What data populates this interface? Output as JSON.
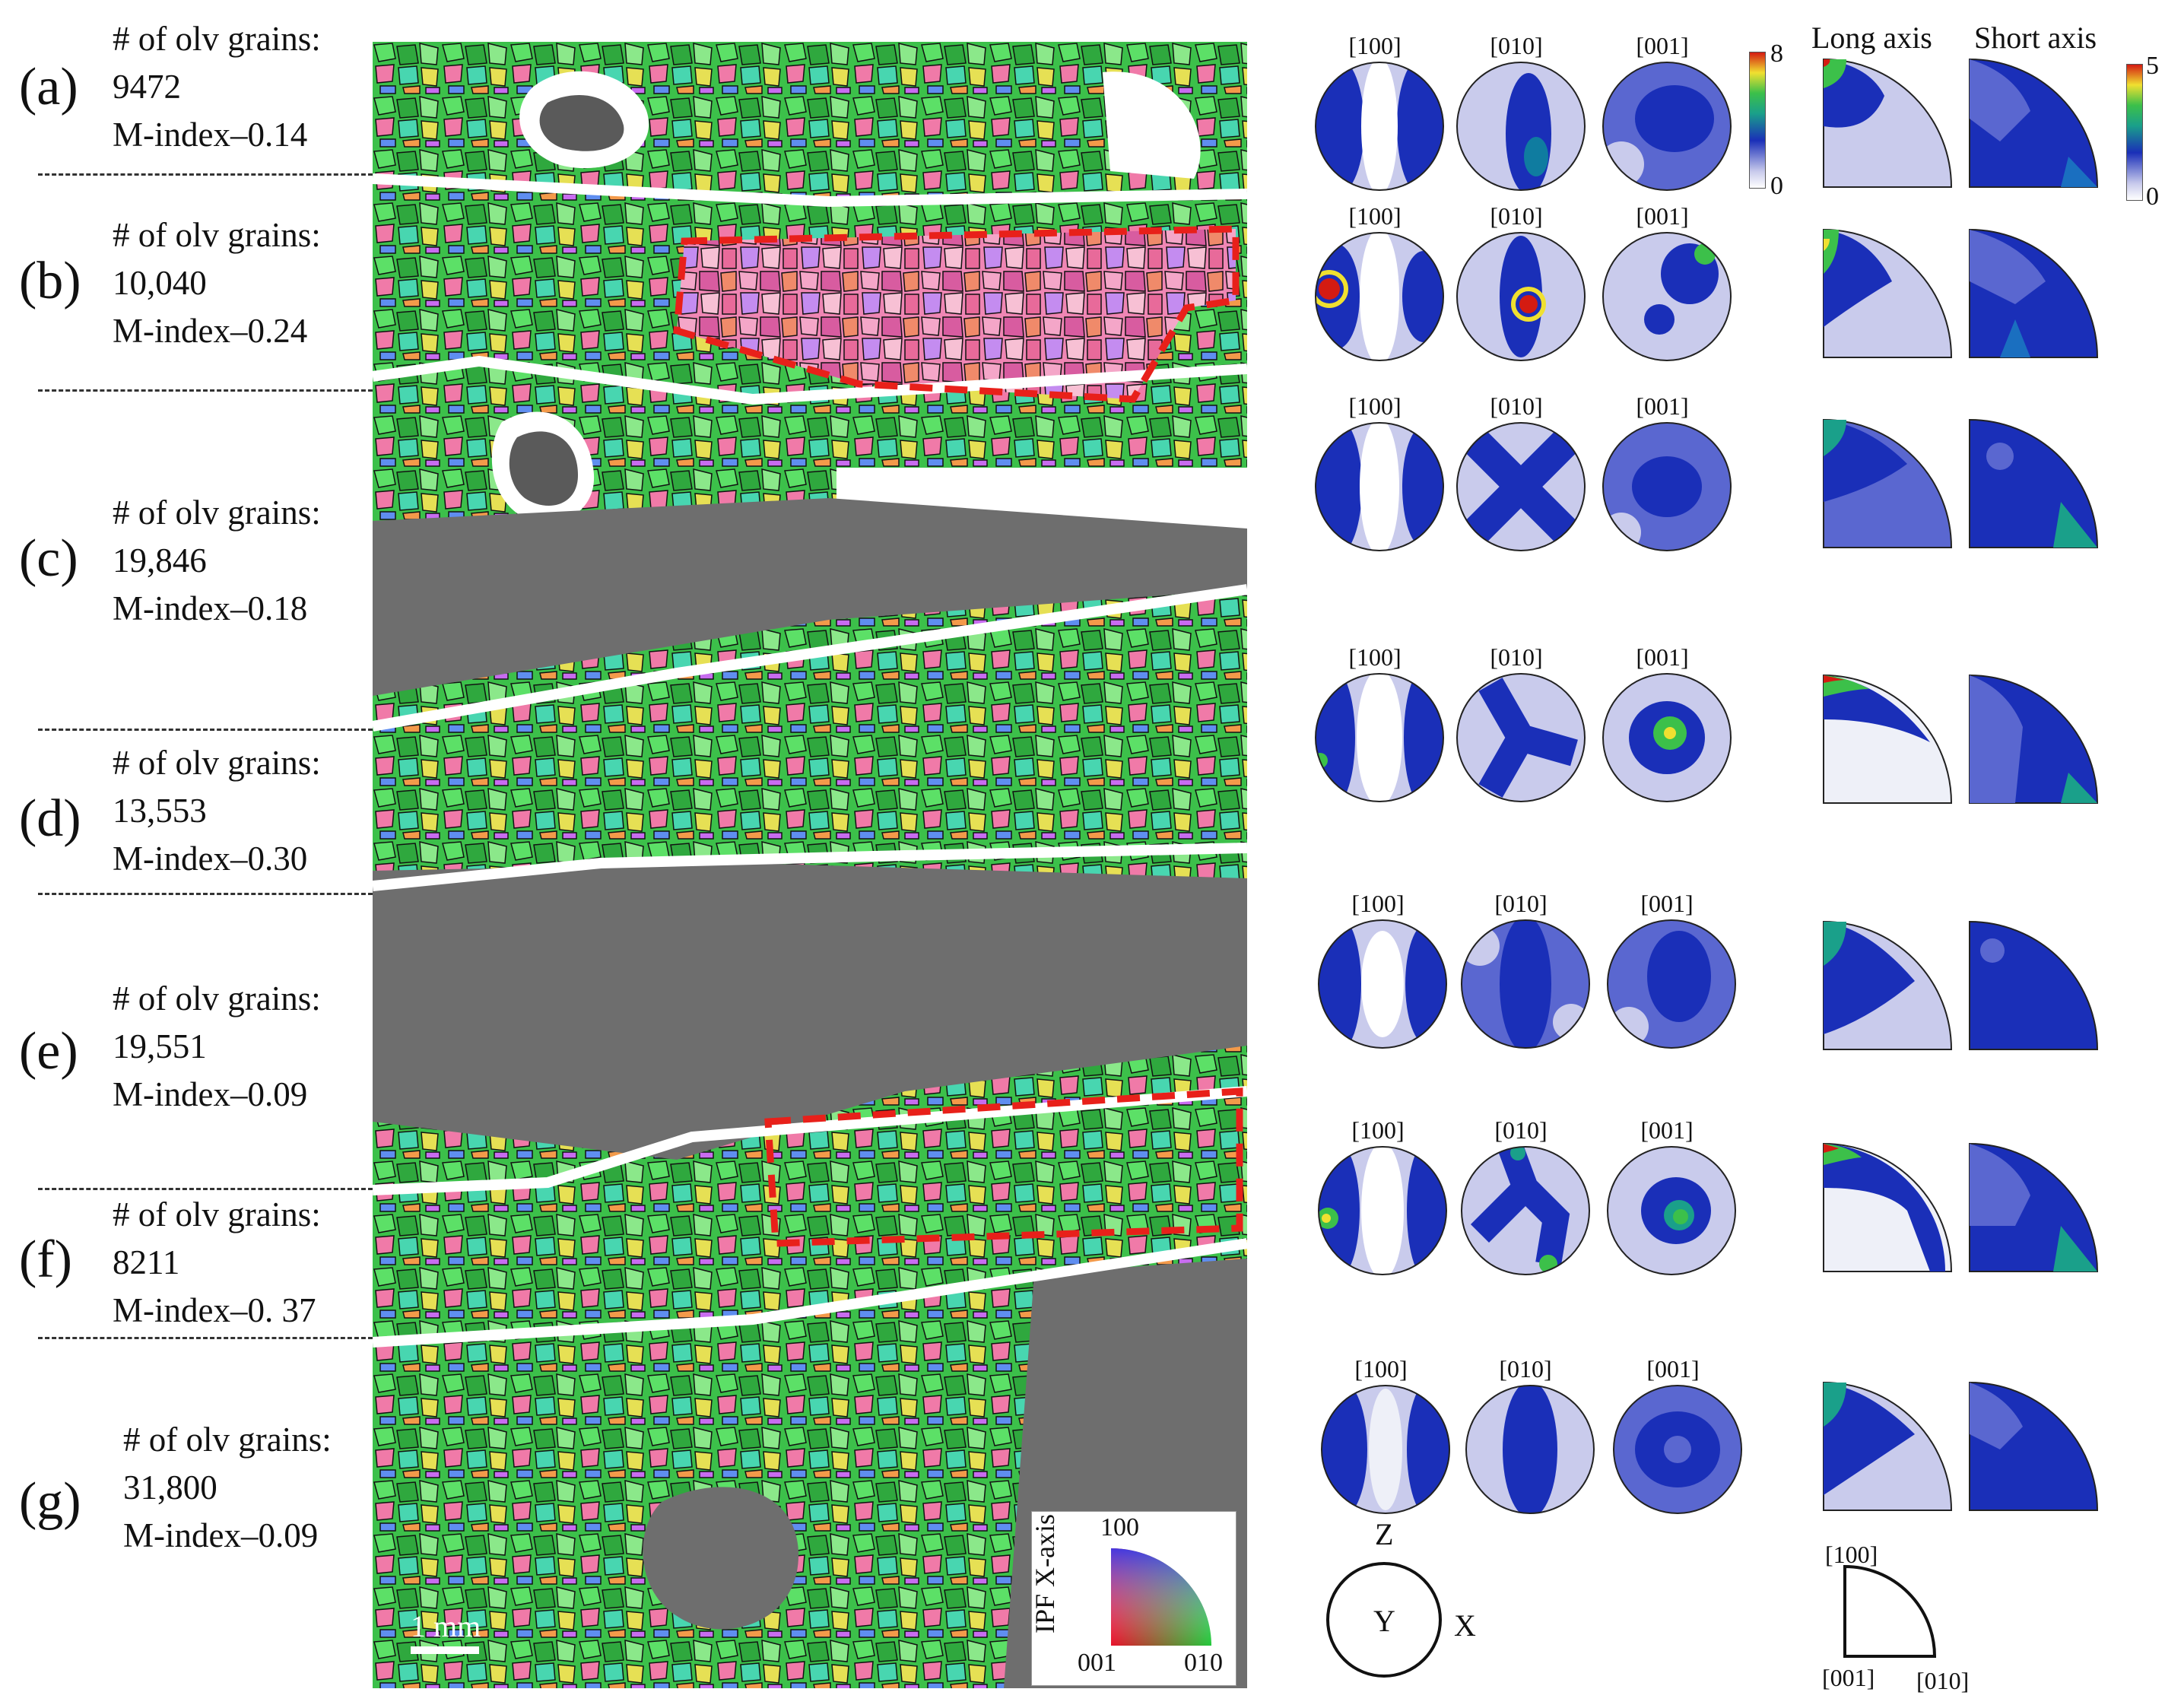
{
  "panels": [
    {
      "letter": "(a)",
      "grains_label": "# of olv grains:",
      "count": "9472",
      "m_index": "M-index–0.14"
    },
    {
      "letter": "(b)",
      "grains_label": "# of olv grains:",
      "count": "10,040",
      "m_index": "M-index–0.24"
    },
    {
      "letter": "(c)",
      "grains_label": "# of olv grains:",
      "count": "19,846",
      "m_index": "M-index–0.18"
    },
    {
      "letter": "(d)",
      "grains_label": "# of olv grains:",
      "count": "13,553",
      "m_index": "M-index–0.30"
    },
    {
      "letter": "(e)",
      "grains_label": "# of olv grains:",
      "count": "19,551",
      "m_index": "M-index–0.09"
    },
    {
      "letter": "(f)",
      "grains_label": "# of olv grains:",
      "count": "8211",
      "m_index": "M-index–0. 37"
    },
    {
      "letter": "(g)",
      "grains_label": "# of olv grains:",
      "count": "31,800",
      "m_index": "M-index–0.09"
    }
  ],
  "pole_figure_headers": [
    "[100]",
    "[010]",
    "[001]"
  ],
  "shape_headers": {
    "long": "Long axis",
    "short": "Short axis"
  },
  "colorbar_cpo": {
    "max": "8",
    "min": "0"
  },
  "colorbar_shape": {
    "max": "5",
    "min": "0"
  },
  "scale_bar": "1 mm",
  "ipf_legend": {
    "title": "IPF X-axis",
    "top": "100",
    "left": "001",
    "right": "010"
  },
  "reference_frame": {
    "z": "Z",
    "y": "Y",
    "x": "X"
  },
  "ipf_triangle_labels": {
    "top": "[100]",
    "bottom_left": "[001]",
    "bottom_right": "[010]"
  },
  "colors": {
    "olivine_green": "#3cc04a",
    "non_olivine_gray": "#6e6e6e",
    "boundary_white": "#ffffff",
    "subdomain_outline": "#e8201a",
    "density_low": "#c9cbec",
    "density_mid": "#1a2fb8",
    "density_high": "#d41b12"
  }
}
